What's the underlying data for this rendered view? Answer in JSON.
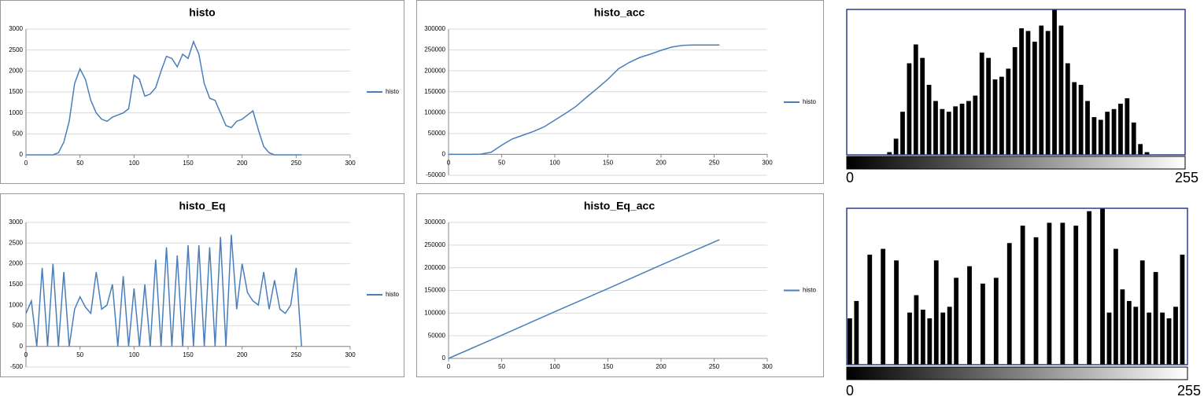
{
  "chart_data": [
    {
      "type": "line",
      "title": "histo",
      "xlim": [
        0,
        300
      ],
      "xticks": [
        0,
        50,
        100,
        150,
        200,
        250,
        300
      ],
      "ylim": [
        0,
        3000
      ],
      "yticks": [
        0,
        500,
        1000,
        1500,
        2000,
        2500,
        3000
      ],
      "grid": true,
      "x": [
        0,
        5,
        10,
        15,
        20,
        25,
        30,
        35,
        40,
        45,
        50,
        55,
        60,
        65,
        70,
        75,
        80,
        85,
        90,
        95,
        100,
        105,
        110,
        115,
        120,
        125,
        130,
        135,
        140,
        145,
        150,
        155,
        160,
        165,
        170,
        175,
        180,
        185,
        190,
        195,
        200,
        205,
        210,
        215,
        220,
        225,
        230,
        235,
        240,
        245,
        250,
        255
      ],
      "series": [
        {
          "name": "histo",
          "color": "#4a7ebb",
          "values": [
            0,
            0,
            0,
            0,
            0,
            0,
            50,
            300,
            800,
            1700,
            2050,
            1800,
            1300,
            1000,
            850,
            800,
            900,
            950,
            1000,
            1100,
            1900,
            1800,
            1400,
            1450,
            1600,
            2000,
            2350,
            2300,
            2100,
            2400,
            2300,
            2700,
            2400,
            1700,
            1350,
            1300,
            1000,
            700,
            650,
            800,
            850,
            950,
            1050,
            600,
            200,
            50,
            0,
            0,
            0,
            0,
            0,
            0
          ]
        }
      ]
    },
    {
      "type": "line",
      "title": "histo_acc",
      "xlim": [
        0,
        300
      ],
      "xticks": [
        0,
        50,
        100,
        150,
        200,
        250,
        300
      ],
      "ylim": [
        -50000,
        300000
      ],
      "yticks": [
        -50000,
        0,
        50000,
        100000,
        150000,
        200000,
        250000,
        300000
      ],
      "grid": true,
      "x": [
        0,
        10,
        20,
        30,
        40,
        50,
        60,
        70,
        80,
        90,
        100,
        110,
        120,
        130,
        140,
        150,
        160,
        170,
        180,
        190,
        200,
        210,
        220,
        230,
        240,
        250,
        255
      ],
      "series": [
        {
          "name": "histo",
          "color": "#4a7ebb",
          "values": [
            0,
            0,
            0,
            500,
            5000,
            22000,
            37000,
            46000,
            55000,
            66000,
            82000,
            98000,
            115000,
            137000,
            158000,
            180000,
            205000,
            220000,
            232000,
            240000,
            249000,
            257000,
            261000,
            262000,
            262000,
            262000,
            262000
          ]
        }
      ]
    },
    {
      "type": "line",
      "title": "histo_Eq",
      "xlim": [
        0,
        300
      ],
      "xticks": [
        0,
        50,
        100,
        150,
        200,
        250,
        300
      ],
      "ylim": [
        -500,
        3000
      ],
      "yticks": [
        -500,
        0,
        500,
        1000,
        1500,
        2000,
        2500,
        3000
      ],
      "grid": true,
      "x": [
        0,
        5,
        10,
        15,
        20,
        25,
        30,
        35,
        40,
        45,
        50,
        55,
        60,
        65,
        70,
        75,
        80,
        85,
        90,
        95,
        100,
        105,
        110,
        115,
        120,
        125,
        130,
        135,
        140,
        145,
        150,
        155,
        160,
        165,
        170,
        175,
        180,
        185,
        190,
        195,
        200,
        205,
        210,
        215,
        220,
        225,
        230,
        235,
        240,
        245,
        250,
        255
      ],
      "series": [
        {
          "name": "histo",
          "color": "#4a7ebb",
          "values": [
            800,
            1100,
            0,
            1900,
            0,
            2000,
            0,
            1800,
            0,
            900,
            1200,
            950,
            800,
            1800,
            900,
            1000,
            1500,
            0,
            1700,
            0,
            1400,
            0,
            1500,
            0,
            2100,
            0,
            2400,
            0,
            2200,
            0,
            2450,
            0,
            2450,
            0,
            2400,
            0,
            2650,
            0,
            2700,
            900,
            2000,
            1300,
            1100,
            1000,
            1800,
            900,
            1600,
            900,
            800,
            1000,
            1900,
            0
          ]
        }
      ]
    },
    {
      "type": "line",
      "title": "histo_Eq_acc",
      "xlim": [
        0,
        300
      ],
      "xticks": [
        0,
        50,
        100,
        150,
        200,
        250,
        300
      ],
      "ylim": [
        0,
        300000
      ],
      "yticks": [
        0,
        50000,
        100000,
        150000,
        200000,
        250000,
        300000
      ],
      "grid": true,
      "x": [
        0,
        50,
        100,
        150,
        200,
        255
      ],
      "series": [
        {
          "name": "histo",
          "color": "#4a7ebb",
          "values": [
            0,
            51000,
            103000,
            154000,
            206000,
            262000
          ]
        }
      ]
    }
  ],
  "image_histograms": [
    {
      "range": [
        0,
        255
      ]
    },
    {
      "range": [
        0,
        255
      ]
    }
  ]
}
